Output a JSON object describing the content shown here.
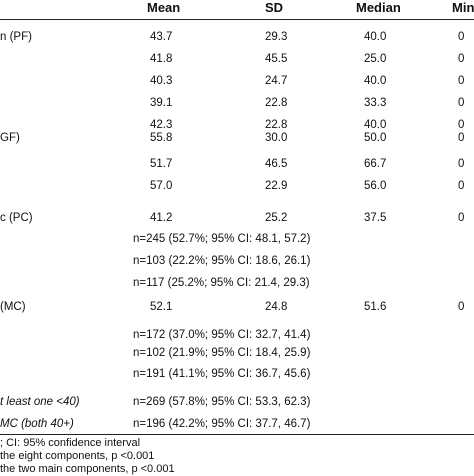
{
  "header": {
    "col_mean": "Mean",
    "col_sd": "SD",
    "col_median": "Median",
    "col_min": "Min"
  },
  "rows": [
    {
      "label": "n (PF)",
      "mean": "43.7",
      "sd": "29.3",
      "median": "40.0",
      "min": "0"
    },
    {
      "label": "",
      "mean": "41.8",
      "sd": "45.5",
      "median": "25.0",
      "min": "0"
    },
    {
      "label": "",
      "mean": "40.3",
      "sd": "24.7",
      "median": "40.0",
      "min": "0"
    },
    {
      "label": "",
      "mean": "39.1",
      "sd": "22.8",
      "median": "33.3",
      "min": "0"
    },
    {
      "label": "",
      "mean": "42.3",
      "sd": "22.8",
      "median": "40.0",
      "min": "0"
    },
    {
      "label": "GF)",
      "mean": "55.8",
      "sd": "30.0",
      "median": "50.0",
      "min": "0"
    },
    {
      "label": "",
      "mean": "51.7",
      "sd": "46.5",
      "median": "66.7",
      "min": "0"
    },
    {
      "label": "",
      "mean": "57.0",
      "sd": "22.9",
      "median": "56.0",
      "min": "0"
    },
    {
      "label": "c (PC)",
      "mean": "41.2",
      "sd": "25.2",
      "median": "37.5",
      "min": "0"
    },
    {
      "label": "",
      "span": "n=245 (52.7%; 95% CI: 48.1, 57.2)"
    },
    {
      "label": "",
      "span": "n=103 (22.2%; 95% CI: 18.6, 26.1)"
    },
    {
      "label": "",
      "span": "n=117 (25.2%; 95% CI: 21.4, 29.3)"
    },
    {
      "label": "(MC)",
      "mean": "52.1",
      "sd": "24.8",
      "median": "51.6",
      "min": "0"
    },
    {
      "label": "",
      "span": "n=172 (37.0%; 95% CI: 32.7, 41.4)"
    },
    {
      "label": "",
      "span": "n=102 (21.9%; 95% CI: 18.4, 25.9)"
    },
    {
      "label": "",
      "span": "n=191 (41.1%; 95% CI: 36.7, 45.6)"
    },
    {
      "label": "t least one <40)",
      "span": "n=269 (57.8%; 95% CI: 53.3, 62.3)"
    },
    {
      "label": "MC (both 40+)",
      "span": "n=196 (42.2%; 95% CI: 37.7, 46.7)"
    }
  ],
  "footnotes": [
    "; CI: 95% confidence interval",
    "the eight components, p <0.001",
    "the two main components, p <0.001"
  ]
}
